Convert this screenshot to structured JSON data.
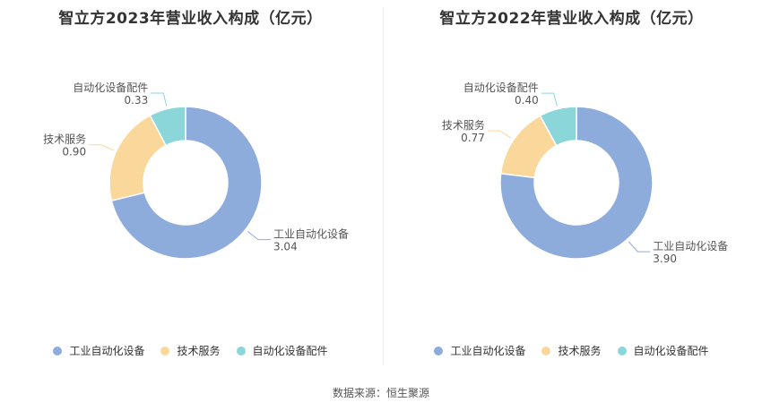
{
  "source_note": "数据来源：恒生聚源",
  "chart_data": [
    {
      "type": "pie",
      "title": "智立方2023年营业收入构成（亿元）",
      "categories": [
        "工业自动化设备",
        "技术服务",
        "自动化设备配件"
      ],
      "values": [
        3.04,
        0.9,
        0.33
      ],
      "value_labels": [
        "3.04",
        "0.90",
        "0.33"
      ],
      "colors": [
        "#8eacdb",
        "#fad89b",
        "#8ad6d9"
      ],
      "legend_position": "bottom"
    },
    {
      "type": "pie",
      "title": "智立方2022年营业收入构成（亿元）",
      "categories": [
        "工业自动化设备",
        "技术服务",
        "自动化设备配件"
      ],
      "values": [
        3.9,
        0.77,
        0.4
      ],
      "value_labels": [
        "3.90",
        "0.77",
        "0.40"
      ],
      "colors": [
        "#8eacdb",
        "#fad89b",
        "#8ad6d9"
      ],
      "legend_position": "bottom"
    }
  ]
}
